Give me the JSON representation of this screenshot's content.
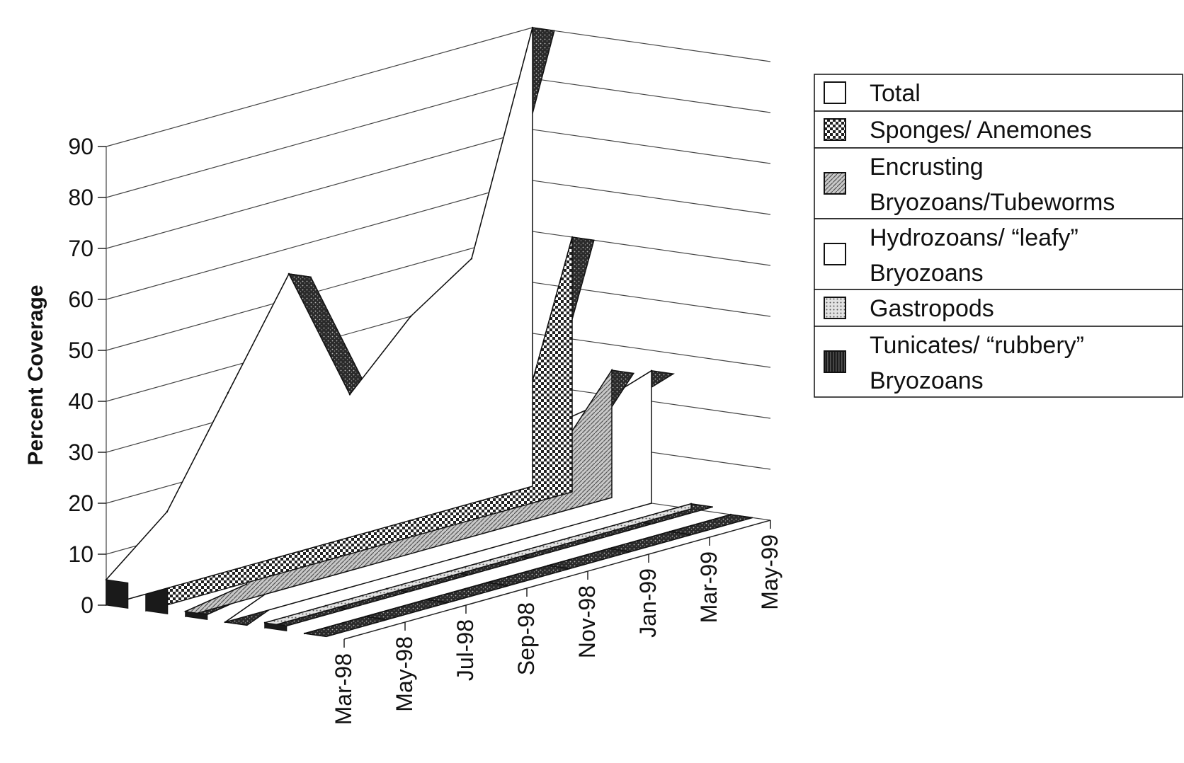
{
  "chart_data": {
    "type": "area",
    "title": "",
    "xlabel": "",
    "ylabel": "Percent Coverage",
    "ylim": [
      0,
      90
    ],
    "yticks": [
      0,
      10,
      20,
      30,
      40,
      50,
      60,
      70,
      80,
      90
    ],
    "categories": [
      "Mar-98",
      "May-98",
      "Jul-98",
      "Sep-98",
      "Nov-98",
      "Jan-99",
      "Mar-99",
      "May-99"
    ],
    "grid": true,
    "legend_position": "right",
    "series": [
      {
        "name": "Total",
        "fill": "white",
        "values": [
          5,
          15,
          35,
          55,
          28,
          40,
          48,
          90
        ]
      },
      {
        "name": "Sponges/ Anemones",
        "fill": "checker",
        "values": [
          5,
          12,
          12,
          5,
          5,
          5,
          10,
          50
        ]
      },
      {
        "name": "Encrusting Bryozoans/Tubeworms",
        "fill": "diag",
        "values": [
          1,
          3,
          27,
          5,
          5,
          5,
          10,
          25
        ]
      },
      {
        "name": "Hydrozoans/ “leafy” Bryozoans",
        "fill": "white",
        "values": [
          0,
          5,
          25,
          5,
          18,
          20,
          22,
          26
        ]
      },
      {
        "name": "Gastropods",
        "fill": "dots",
        "values": [
          1,
          1,
          1,
          1,
          1,
          1,
          1,
          1
        ]
      },
      {
        "name": "Tunicates/ “rubbery” Bryozoans",
        "fill": "dark",
        "values": [
          0,
          0,
          0,
          0,
          0,
          0,
          0,
          0
        ]
      }
    ],
    "legend_lines": [
      [
        "Total"
      ],
      [
        "Sponges/ Anemones"
      ],
      [
        "Encrusting",
        "Bryozoans/Tubeworms"
      ],
      [
        "Hydrozoans/ “leafy”",
        "Bryozoans"
      ],
      [
        "Gastropods"
      ],
      [
        "Tunicates/ “rubbery”",
        "Bryozoans"
      ]
    ]
  }
}
